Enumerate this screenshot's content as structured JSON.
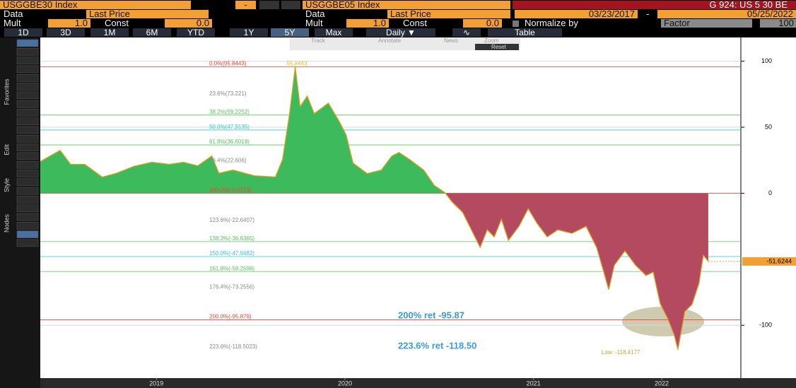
{
  "toolbar": {
    "row1": {
      "security1": "USGGBE30 Index",
      "minus": "-",
      "security2": "USGGBE05 Index",
      "chart_id": "G 924: US 5 30 BE"
    },
    "row2": {
      "data1_label": "Data",
      "data1_value": "Last Price",
      "data2_label": "Data",
      "data2_value": "Last Price",
      "start_date": "03/23/2017",
      "dash": "-",
      "end_date": "05/25/2022"
    },
    "row3": {
      "mult1_label": "Mult",
      "mult1": "1.0",
      "const1_label": "Const",
      "const1": "0.0",
      "mult2_label": "Mult",
      "mult2": "1.0",
      "const2_label": "Const",
      "const2": "0.0",
      "normalize_label": "Normalize by",
      "normalize_value": "Factor",
      "normalize_factor": "100"
    },
    "periods": [
      "1D",
      "3D",
      "1M",
      "6M",
      "YTD",
      "1Y",
      "5Y",
      "Max"
    ],
    "frequency": "Daily",
    "table": "Table"
  },
  "chart_toolbar": {
    "track": "Track",
    "annotate": "Annotate",
    "news": "News",
    "zoom": "Zoom",
    "reset": "Reset"
  },
  "side_labels": [
    "Favorites",
    "Edit",
    "Style",
    "Nodes"
  ],
  "chart_data": {
    "type": "area",
    "x": [
      2018.884,
      2018.989,
      2019.045,
      2019.12,
      2019.213,
      2019.288,
      2019.382,
      2019.476,
      2019.569,
      2019.644,
      2019.719,
      2019.794,
      2019.831,
      2019.906,
      2020.019,
      2020.131,
      2020.169,
      2020.206,
      2020.236,
      2020.262,
      2020.3,
      2020.337,
      2020.412,
      2020.468,
      2020.506,
      2020.543,
      2020.618,
      2020.693,
      2020.749,
      2020.787,
      2020.843,
      2020.918,
      2020.974,
      2021.03,
      2021.067,
      2021.124,
      2021.18,
      2021.217,
      2021.255,
      2021.292,
      2021.33,
      2021.367,
      2021.423,
      2021.472,
      2021.517,
      2021.573,
      2021.629,
      2021.704,
      2021.779,
      2021.835,
      2021.873,
      2021.899,
      2021.929,
      2021.985,
      2022.041,
      2022.097,
      2022.135,
      2022.172,
      2022.21,
      2022.247,
      2022.266,
      2022.303,
      2022.341,
      2022.378,
      2022.401,
      2022.427
    ],
    "values": [
      24.0,
      32.5,
      21.9,
      21.9,
      12.3,
      15.2,
      20.5,
      23.5,
      21.9,
      23.5,
      20.8,
      28.3,
      15.2,
      17.6,
      13.3,
      12.3,
      25.6,
      60.3,
      95.8443,
      65.6,
      73.6,
      60.3,
      68.3,
      54.9,
      44.3,
      22.9,
      14.9,
      17.6,
      28.3,
      30.9,
      25.6,
      17.6,
      5.9,
      0.5,
      -6.4,
      -14.4,
      -30.4,
      -41.1,
      -27.7,
      -33.1,
      -19.7,
      -35.7,
      -25.1,
      -11.7,
      -22.4,
      -33.1,
      -27.7,
      -30.4,
      -25.1,
      -41.1,
      -59.7,
      -73.1,
      -54.4,
      -43.7,
      -54.4,
      -62.4,
      -59.7,
      -83.7,
      -94.4,
      -107.7,
      -118.4177,
      -89.6,
      -84.3,
      -68.3,
      -46.9,
      -51.6244
    ],
    "positive_color": "#3dba5c",
    "negative_color": "#b44a60",
    "line_color": "#e0a020",
    "xlim": [
      2018.884,
      2022.6
    ],
    "xticks": [
      {
        "value": 2019.5,
        "label": "2019"
      },
      {
        "value": 2020.5,
        "label": "2020"
      },
      {
        "value": 2021.5,
        "label": "2021"
      },
      {
        "value": 2022.18,
        "label": "2022"
      }
    ],
    "ylim": [
      -140,
      118
    ],
    "yticks": [
      -100,
      0,
      50,
      100
    ],
    "grid": true,
    "levels": [
      {
        "value": 95.8443,
        "label": "0.0%(95.8443)",
        "color": "#ff3b30",
        "line": true
      },
      {
        "value": 73.221,
        "label": "23.6%(73.221)",
        "color": "#8a8a8a",
        "line": false
      },
      {
        "value": 59.2252,
        "label": "38.2%(59.2252)",
        "color": "#52c85a",
        "line": true
      },
      {
        "value": 47.9135,
        "label": "50.0%(47.9135)",
        "color": "#2ec8e0",
        "line": true
      },
      {
        "value": 36.6018,
        "label": "61.8%(36.6018)",
        "color": "#52c85a",
        "line": true
      },
      {
        "value": 22.606,
        "label": "76.4%(22.606)",
        "color": "#8a8a8a",
        "line": false
      },
      {
        "value": -0.0173,
        "label": "100.0%(-0.0173)",
        "color": "#ff3b30",
        "line": true
      },
      {
        "value": -22.6407,
        "label": "123.6%(-22.6407)",
        "color": "#8a8a8a",
        "line": false
      },
      {
        "value": -36.6365,
        "label": "138.2%(-36.6365)",
        "color": "#52c85a",
        "line": true
      },
      {
        "value": -47.9482,
        "label": "150.0%(-47.9482)",
        "color": "#2ec8e0",
        "line": true
      },
      {
        "value": -59.2598,
        "label": "161.8%(-59.2598)",
        "color": "#52c85a",
        "line": true
      },
      {
        "value": -73.2556,
        "label": "176.4%(-73.2556)",
        "color": "#8a8a8a",
        "line": false
      },
      {
        "value": -95.879,
        "label": "200.0%(-95.879)",
        "color": "#ff3b30",
        "line": true
      },
      {
        "value": -118.5023,
        "label": "223.6%(-118.5023)",
        "color": "#8a8a8a",
        "line": false
      }
    ],
    "annotations": {
      "peak": "95.8443",
      "low": "Low: -118.4177",
      "last": "-51.6244",
      "ret200": "200% ret -95.87",
      "ret2236": "223.6% ret -118.50"
    }
  }
}
